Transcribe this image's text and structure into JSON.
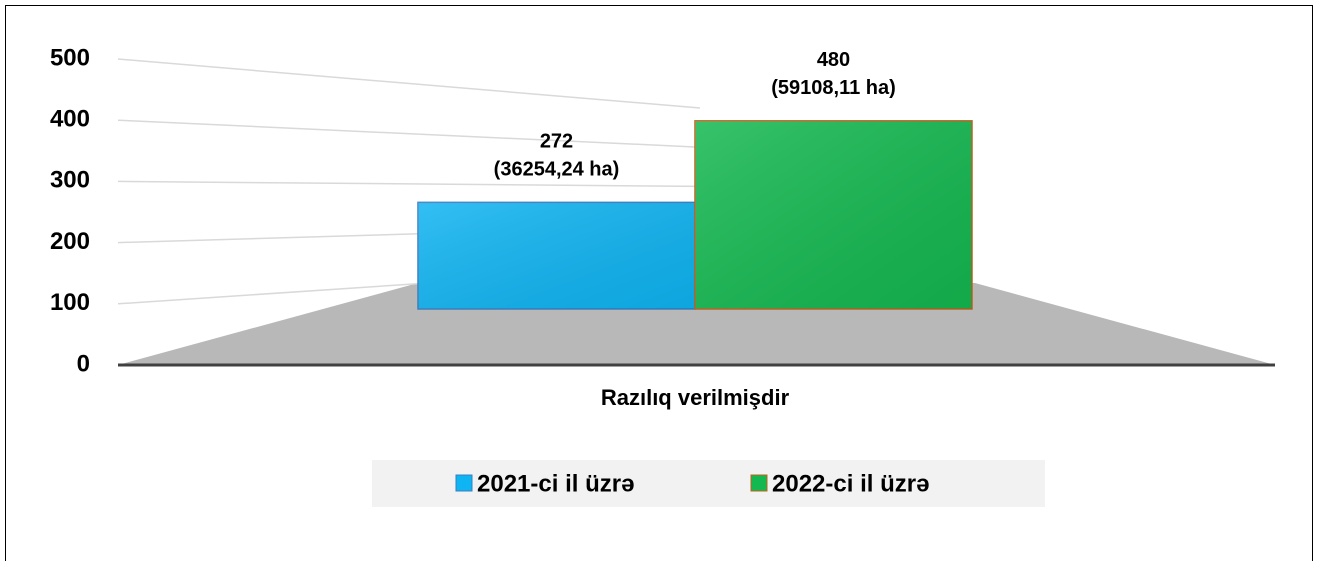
{
  "chart_data": {
    "type": "bar3d",
    "categories": [
      "Razılıq verilmişdir"
    ],
    "series": [
      {
        "name": "2021-ci il üzrə",
        "color": "#0fb4f2",
        "values": [
          272
        ],
        "value_labels": [
          "272"
        ],
        "area_labels": [
          "(36254,24 ha)"
        ]
      },
      {
        "name": "2022-ci il üzrə",
        "color": "#14b850",
        "values": [
          480
        ],
        "value_labels": [
          "480"
        ],
        "area_labels": [
          "(59108,11 ha)"
        ]
      }
    ],
    "ylim": [
      0,
      500
    ],
    "yticks": [
      0,
      100,
      200,
      300,
      400,
      500
    ],
    "grid": true,
    "legend": "bottom"
  }
}
